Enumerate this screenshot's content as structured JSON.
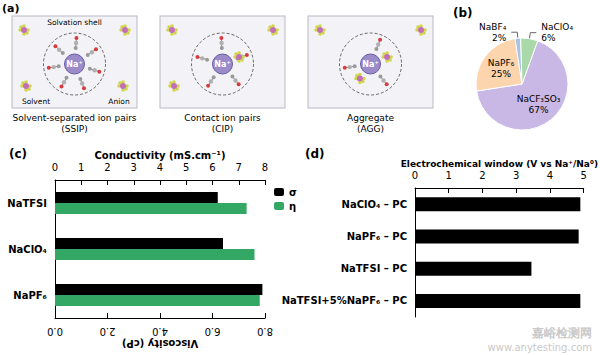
{
  "diagram": {
    "label": "(a)",
    "panels": [
      {
        "ion": "Na⁺",
        "caption": [
          "Solvent-separated ion pairs",
          "(SSIP)"
        ],
        "annotations": {
          "shell": "Solvation shell",
          "solvent": "Solvent",
          "anion": "Anion"
        }
      },
      {
        "ion": "Na⁺",
        "caption": [
          "Contact ion pairs",
          "(CIP)"
        ]
      },
      {
        "ion": "Na⁺",
        "caption": [
          "Aggregate",
          "(AGG)"
        ]
      }
    ]
  },
  "chart_data": [
    {
      "type": "pie",
      "label": "(b)",
      "categories": [
        "NaCF₃SO₃",
        "NaPF₆",
        "NaBF₄",
        "NaClO₄"
      ],
      "values": [
        67,
        25,
        2,
        6
      ],
      "value_labels": [
        "67%",
        "25%",
        "2%",
        "6%"
      ],
      "colors": [
        "#c9b8e6",
        "#fcd4ad",
        "#a9c4e2",
        "#a9d9a9"
      ],
      "data_labels": true
    },
    {
      "type": "bar",
      "label": "(c)",
      "orientation": "horizontal",
      "categories": [
        "NaTFSI",
        "NaClO₄",
        "NaPF₆"
      ],
      "ylabel": "Conductivity (mS.cm⁻¹)",
      "ylim": [
        0,
        8
      ],
      "yticks": [
        0,
        1,
        2,
        3,
        4,
        5,
        6,
        7,
        8
      ],
      "y2label": "Viscosity (cP)",
      "y2lim": [
        0,
        8
      ],
      "y2ticks": [
        {
          "value": 0,
          "label": "0.0"
        },
        {
          "value": 2,
          "label": "2.0"
        },
        {
          "value": 4,
          "label": "4.0"
        },
        {
          "value": 6,
          "label": "6.0"
        },
        {
          "value": 8,
          "label": "8.0"
        }
      ],
      "legend": "upper right",
      "series": [
        {
          "name": "σ",
          "color": "#000000",
          "values": [
            6.2,
            6.4,
            7.9
          ]
        },
        {
          "name": "η",
          "color": "#33a864",
          "axis": "y2",
          "values": [
            7.3,
            7.6,
            7.8
          ]
        }
      ]
    },
    {
      "type": "bar",
      "label": "(d)",
      "orientation": "horizontal",
      "categories": [
        "NaClO₄ – PC",
        "NaPF₆ – PC",
        "NaTFSI – PC",
        "NaTFSI+5%NaPF₆ – PC"
      ],
      "ylabel": "Electrochemical window (V vs Na⁺/Na⁰)",
      "ylim": [
        0,
        5
      ],
      "yticks": [
        0,
        1,
        2,
        3,
        4,
        5
      ],
      "values": [
        4.9,
        4.85,
        3.45,
        4.9
      ],
      "color": "#000000"
    }
  ],
  "watermark": [
    "嘉峪检测网",
    "www.anytesting.com"
  ]
}
